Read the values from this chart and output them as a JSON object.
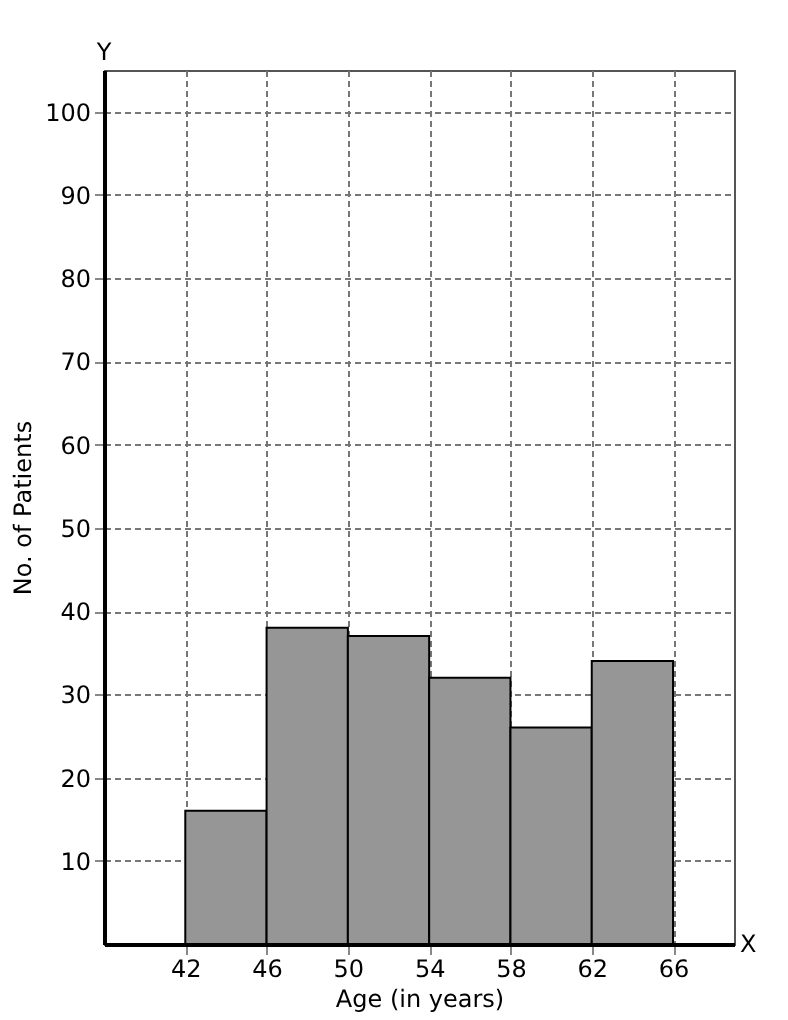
{
  "chart_data": {
    "type": "histogram",
    "xlabel": "Age (in years)",
    "ylabel": "No. of Patients",
    "bins": [
      42,
      46,
      50,
      54,
      58,
      62,
      66
    ],
    "values": [
      16,
      38,
      37,
      32,
      26,
      34
    ],
    "color": "#969696",
    "xlim": [
      38,
      69
    ],
    "xticks": [
      42,
      46,
      50,
      54,
      58,
      62,
      66
    ],
    "ylim": [
      0,
      105
    ],
    "yticks": [
      10,
      20,
      30,
      40,
      50,
      60,
      70,
      80,
      90,
      100
    ],
    "grid": true,
    "annotations": [
      "X",
      "Y"
    ]
  }
}
